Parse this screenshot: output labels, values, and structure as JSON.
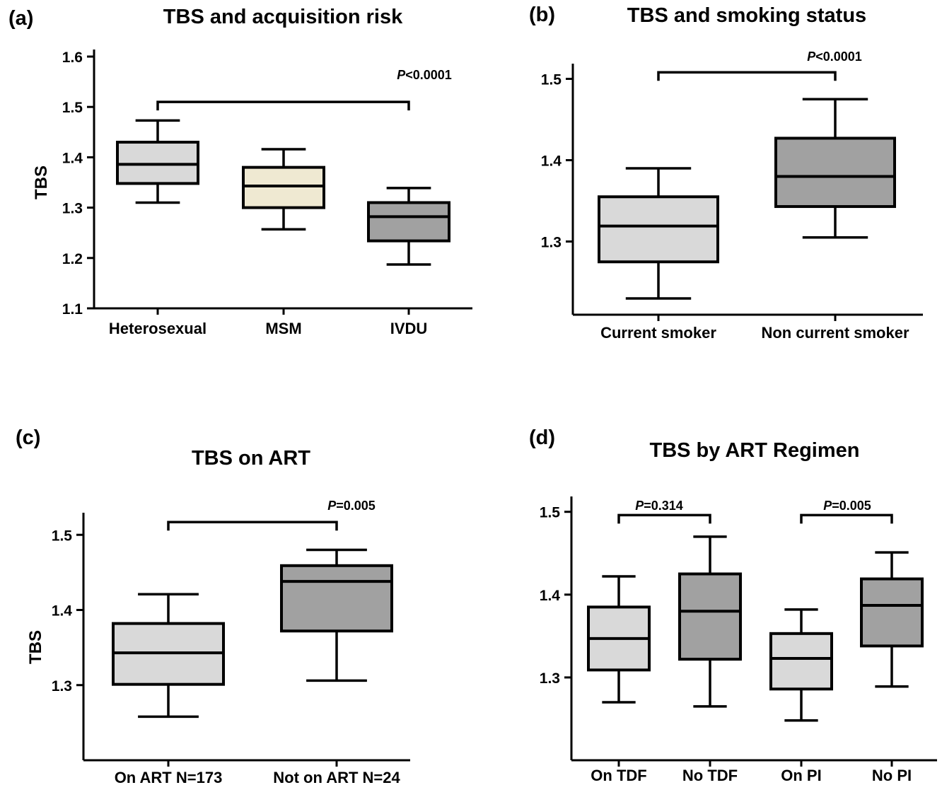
{
  "colors": {
    "light": "#d9d9d9",
    "cream": "#efe9d2",
    "dark": "#a1a1a1"
  },
  "chart_data": [
    {
      "panel": "(a)",
      "type": "box",
      "title": "TBS and acquisition risk",
      "ylabel": "TBS",
      "ylim": [
        1.1,
        1.6
      ],
      "yticks": [
        "1.1",
        "1.2",
        "1.3",
        "1.4",
        "1.5",
        "1.6"
      ],
      "categories": [
        "Heterosexual",
        "MSM",
        "IVDU"
      ],
      "boxes": [
        {
          "label": "Heterosexual",
          "min": 1.31,
          "q1": 1.348,
          "median": 1.386,
          "q3": 1.43,
          "max": 1.473,
          "color": "#d9d9d9"
        },
        {
          "label": "MSM",
          "min": 1.257,
          "q1": 1.3,
          "median": 1.343,
          "q3": 1.38,
          "max": 1.416,
          "color": "#efe9d2"
        },
        {
          "label": "IVDU",
          "min": 1.187,
          "q1": 1.234,
          "median": 1.282,
          "q3": 1.31,
          "max": 1.339,
          "color": "#a1a1a1"
        }
      ],
      "comparisons": [
        {
          "from": 0,
          "to": 2,
          "y": 1.51,
          "p_prefix": "P",
          "p_value": "<0.0001"
        }
      ]
    },
    {
      "panel": "(b)",
      "type": "box",
      "title": "TBS and smoking status",
      "ylabel": "",
      "ylim": [
        1.21,
        1.51
      ],
      "yticks": [
        "1.3",
        "1.4",
        "1.5"
      ],
      "categories": [
        "Current smoker",
        "Non current smoker"
      ],
      "boxes": [
        {
          "label": "Current smoker",
          "min": 1.23,
          "q1": 1.275,
          "median": 1.319,
          "q3": 1.355,
          "max": 1.39,
          "color": "#d9d9d9"
        },
        {
          "label": "Non current smoker",
          "min": 1.305,
          "q1": 1.343,
          "median": 1.38,
          "q3": 1.427,
          "max": 1.475,
          "color": "#a1a1a1"
        }
      ],
      "comparisons": [
        {
          "from": 0,
          "to": 1,
          "y": 1.508,
          "p_prefix": "P",
          "p_value": "<0.0001"
        }
      ]
    },
    {
      "panel": "(c)",
      "type": "box",
      "title": "TBS on ART",
      "ylabel": "TBS",
      "ylim": [
        1.2,
        1.52
      ],
      "yticks": [
        "1.3",
        "1.4",
        "1.5"
      ],
      "categories": [
        "On ART N=173",
        "Not on ART N=24"
      ],
      "boxes": [
        {
          "label": "On ART N=173",
          "min": 1.258,
          "q1": 1.301,
          "median": 1.343,
          "q3": 1.382,
          "max": 1.421,
          "color": "#d9d9d9"
        },
        {
          "label": "Not on ART N=24",
          "min": 1.306,
          "q1": 1.372,
          "median": 1.438,
          "q3": 1.459,
          "max": 1.48,
          "color": "#a1a1a1"
        }
      ],
      "comparisons": [
        {
          "from": 0,
          "to": 1,
          "y": 1.517,
          "p_prefix": "P",
          "p_value": "=0.005"
        }
      ]
    },
    {
      "panel": "(d)",
      "type": "box",
      "title": "TBS by ART Regimen",
      "ylabel": "",
      "ylim": [
        1.2,
        1.51
      ],
      "yticks": [
        "1.3",
        "1.4",
        "1.5"
      ],
      "categories": [
        "On TDF",
        "No TDF",
        "On PI",
        "No PI"
      ],
      "boxes": [
        {
          "label": "On TDF",
          "min": 1.27,
          "q1": 1.309,
          "median": 1.347,
          "q3": 1.385,
          "max": 1.422,
          "color": "#d9d9d9"
        },
        {
          "label": "No TDF",
          "min": 1.265,
          "q1": 1.322,
          "median": 1.38,
          "q3": 1.425,
          "max": 1.47,
          "color": "#a1a1a1"
        },
        {
          "label": "On PI",
          "min": 1.248,
          "q1": 1.286,
          "median": 1.323,
          "q3": 1.353,
          "max": 1.382,
          "color": "#d9d9d9"
        },
        {
          "label": "No PI",
          "min": 1.289,
          "q1": 1.338,
          "median": 1.387,
          "q3": 1.419,
          "max": 1.451,
          "color": "#a1a1a1"
        }
      ],
      "comparisons": [
        {
          "from": 0,
          "to": 1,
          "y": 1.496,
          "p_prefix": "P",
          "p_value": "=0.314"
        },
        {
          "from": 2,
          "to": 3,
          "y": 1.496,
          "p_prefix": "P",
          "p_value": "=0.005"
        }
      ]
    }
  ]
}
